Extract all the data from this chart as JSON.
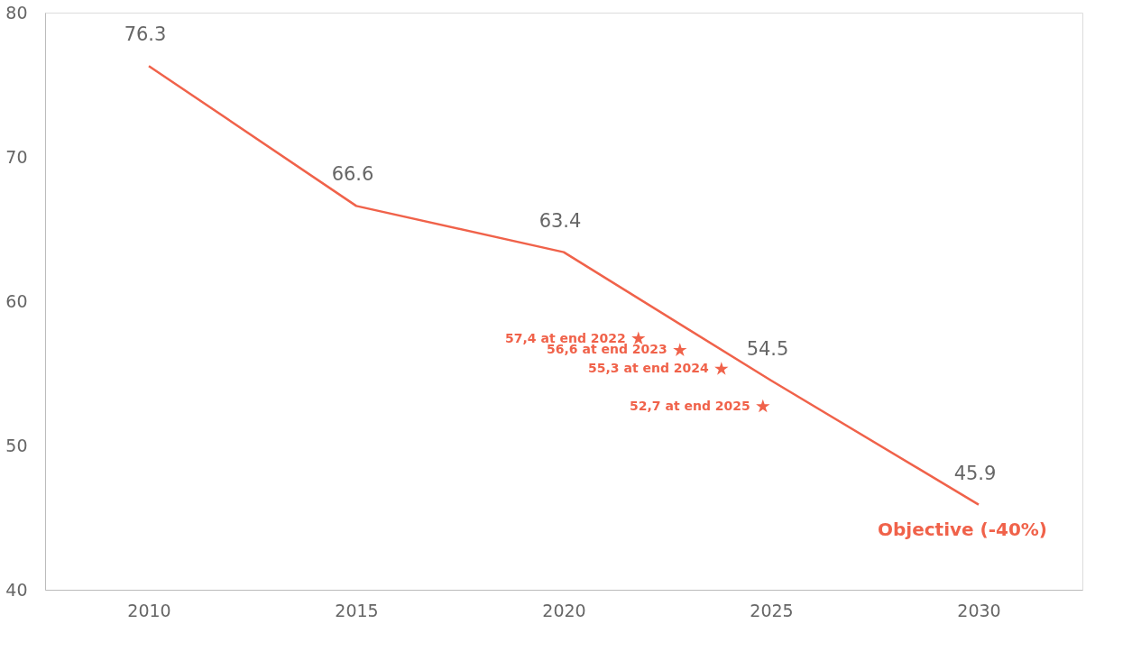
{
  "chart_data": {
    "type": "line",
    "x": [
      2010,
      2015,
      2020,
      2025,
      2030
    ],
    "series": [
      {
        "color": "#f0624a",
        "values": [
          76.3,
          66.6,
          63.4,
          54.5,
          45.9
        ],
        "value_labels": [
          "76.3",
          "66.6",
          "63.4",
          "54.5",
          "45.9"
        ],
        "marker": "none"
      },
      {
        "type": "scatter",
        "color": "#f0624a",
        "x": [
          2021.8,
          2022.8,
          2023.8,
          2024.8
        ],
        "values": [
          57.4,
          56.6,
          55.3,
          52.7
        ],
        "value_labels": [
          "57,4 at end 2022",
          "56,6 at end 2023",
          "55,3 at end 2024",
          "52,7 at end 2025"
        ],
        "marker": "star"
      }
    ],
    "annotations": [
      {
        "text": "Objective (-40%)",
        "x": 2030,
        "y": 45.9
      }
    ],
    "xlim": [
      2007.5,
      2032.5
    ],
    "xticks": [
      2010,
      2015,
      2020,
      2025,
      2030
    ],
    "ylim": [
      40,
      80
    ],
    "yticks": [
      40,
      50,
      60,
      70,
      80
    ],
    "grid": false
  }
}
